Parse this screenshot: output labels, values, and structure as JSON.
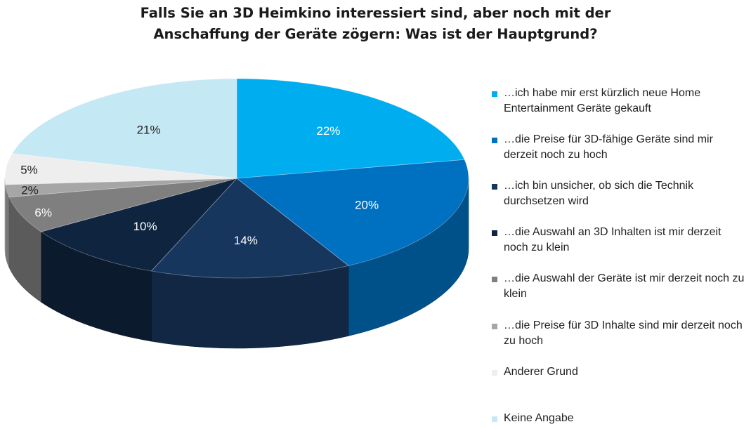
{
  "chart_data": {
    "type": "pie",
    "title": "Falls Sie an 3D Heimkino interessiert sind, aber noch mit der Anschaffung der Geräte zögern: Was ist der Hauptgrund?",
    "title_lines": [
      "Falls Sie an 3D Heimkino interessiert sind, aber noch mit der",
      "Anschaffung der Geräte zögern: Was ist der Hauptgrund?"
    ],
    "slices": [
      {
        "label": "…ich habe mir erst kürzlich neue Home Entertainment Geräte gekauft",
        "value": 22,
        "display": "22%",
        "color": "#00adef",
        "label_color": "#ffffff"
      },
      {
        "label": "…die Preise für 3D-fähige Geräte sind mir derzeit noch zu hoch",
        "value": 20,
        "display": "20%",
        "color": "#0070c0",
        "label_color": "#ffffff"
      },
      {
        "label": "…ich bin unsicher, ob sich die Technik durchsetzen wird",
        "value": 14,
        "display": "14%",
        "color": "#17365d",
        "label_color": "#ffffff"
      },
      {
        "label": "…die Auswahl an 3D Inhalten ist mir derzeit noch zu klein",
        "value": 10,
        "display": "10%",
        "color": "#0f243e",
        "label_color": "#ffffff"
      },
      {
        "label": "…die Auswahl der Geräte ist mir derzeit noch zu klein",
        "value": 6,
        "display": "6%",
        "color": "#7f7f7f",
        "label_color": "#ffffff"
      },
      {
        "label": "…die Preise für 3D Inhalte sind mir derzeit noch zu hoch",
        "value": 2,
        "display": "2%",
        "color": "#a6a6a6",
        "label_color": "#222222"
      },
      {
        "label": "Anderer Grund",
        "value": 5,
        "display": "5%",
        "color": "#eeeeee",
        "label_color": "#222222"
      },
      {
        "label": "Keine Angabe",
        "value": 21,
        "display": "21%",
        "color": "#c5e8f5",
        "label_color": "#222222"
      }
    ],
    "legend_position": "right",
    "style": "3d-pie"
  }
}
